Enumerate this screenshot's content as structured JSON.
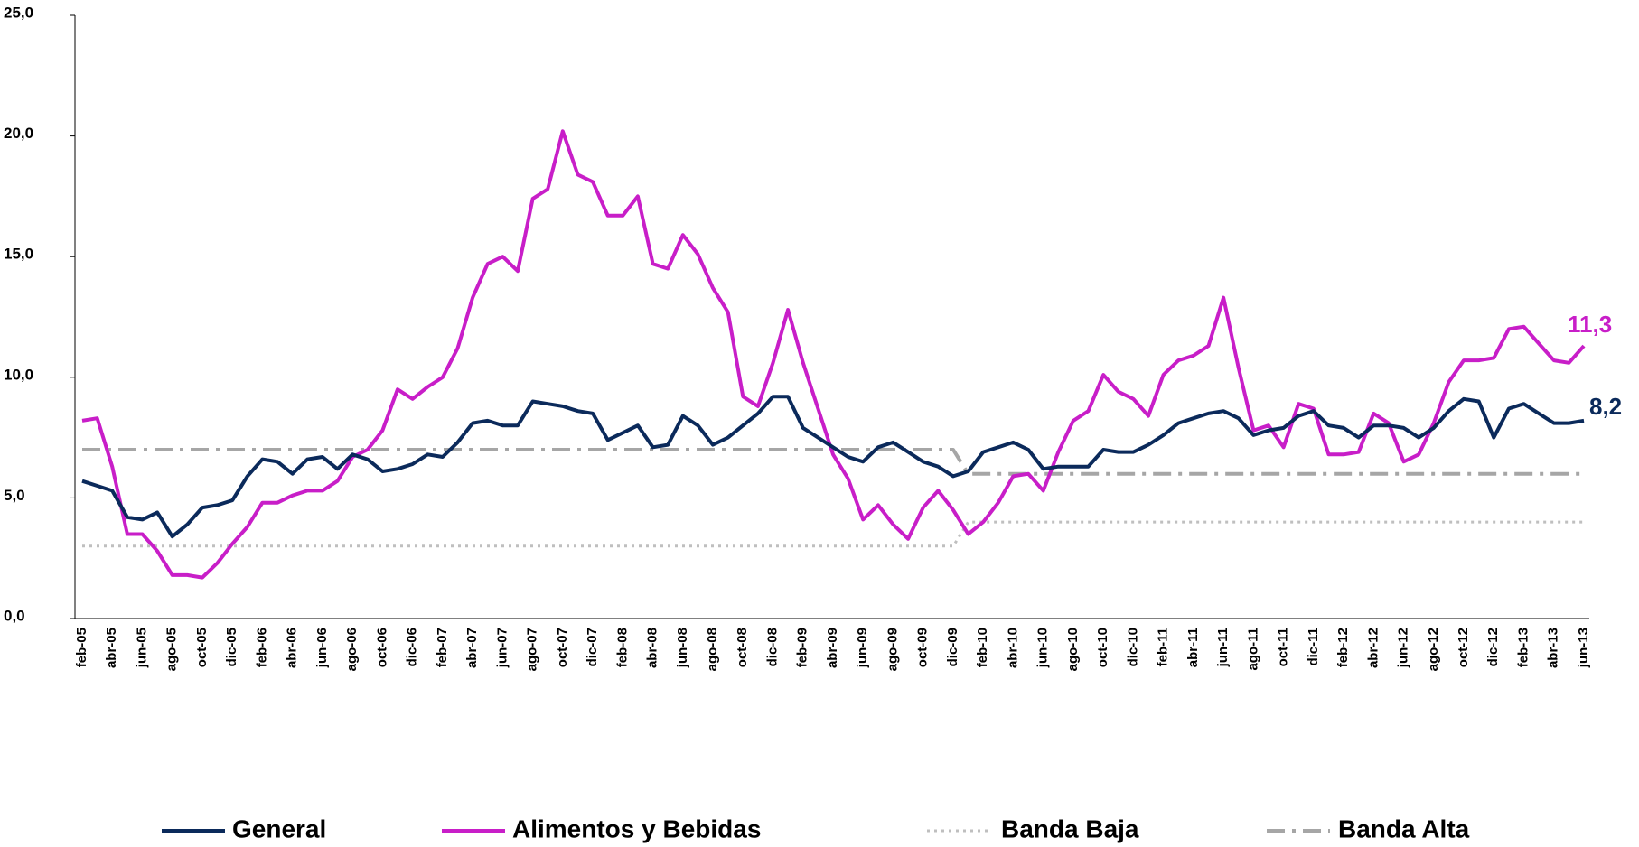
{
  "chart_data": {
    "type": "line",
    "categories": [
      "feb-05",
      null,
      "abr-05",
      null,
      "jun-05",
      null,
      "ago-05",
      null,
      "oct-05",
      null,
      "dic-05",
      null,
      "feb-06",
      null,
      "abr-06",
      null,
      "jun-06",
      null,
      "ago-06",
      null,
      "oct-06",
      null,
      "dic-06",
      null,
      "feb-07",
      null,
      "abr-07",
      null,
      "jun-07",
      null,
      "ago-07",
      null,
      "oct-07",
      null,
      "dic-07",
      null,
      "feb-08",
      null,
      "abr-08",
      null,
      "jun-08",
      null,
      "ago-08",
      null,
      "oct-08",
      null,
      "dic-08",
      null,
      "feb-09",
      null,
      "abr-09",
      null,
      "jun-09",
      null,
      "ago-09",
      null,
      "oct-09",
      null,
      "dic-09",
      null,
      "feb-10",
      null,
      "abr-10",
      null,
      "jun-10",
      null,
      "ago-10",
      null,
      "oct-10",
      null,
      "dic-10",
      null,
      "feb-11",
      null,
      "abr-11",
      null,
      "jun-11",
      null,
      "ago-11",
      null,
      "oct-11",
      null,
      "dic-11",
      null,
      "feb-12",
      null,
      "abr-12",
      null,
      "jun-12",
      null,
      "ago-12",
      null,
      "oct-12",
      null,
      "dic-12",
      null,
      "feb-13",
      null,
      "abr-13",
      null,
      "jun-13"
    ],
    "series": [
      {
        "name": "General",
        "color": "#0b2a5b",
        "dash": "solid",
        "values": [
          5.7,
          5.5,
          5.3,
          4.2,
          4.1,
          4.4,
          3.4,
          3.9,
          4.6,
          4.7,
          4.9,
          5.9,
          6.6,
          6.5,
          6.0,
          6.6,
          6.7,
          6.2,
          6.8,
          6.6,
          6.1,
          6.2,
          6.4,
          6.8,
          6.7,
          7.3,
          8.1,
          8.2,
          8.0,
          8.0,
          9.0,
          8.9,
          8.8,
          8.6,
          8.5,
          7.4,
          7.7,
          8.0,
          7.1,
          7.2,
          8.4,
          8.0,
          7.2,
          7.5,
          8.0,
          8.5,
          9.2,
          9.2,
          7.9,
          7.5,
          7.1,
          6.7,
          6.5,
          7.1,
          7.3,
          6.9,
          6.5,
          6.3,
          5.9,
          6.1,
          6.9,
          7.1,
          7.3,
          7.0,
          6.2,
          6.3,
          6.3,
          6.3,
          7.0,
          6.9,
          6.9,
          7.2,
          7.6,
          8.1,
          8.3,
          8.5,
          8.6,
          8.3,
          7.6,
          7.8,
          7.9,
          8.4,
          8.6,
          8.0,
          7.9,
          7.5,
          8.0,
          8.0,
          7.9,
          7.5,
          7.9,
          8.6,
          9.1,
          9.0,
          7.5,
          8.7,
          8.9,
          8.5,
          8.1,
          8.1,
          8.2
        ],
        "value_labels": [
          null,
          null,
          null,
          null,
          null,
          null,
          null,
          null,
          null,
          null,
          null,
          null,
          null,
          null,
          null,
          null,
          null,
          null,
          null,
          null,
          null,
          null,
          null,
          null,
          null,
          null,
          null,
          null,
          null,
          null,
          null,
          null,
          null,
          null,
          null,
          null,
          null,
          null,
          null,
          null,
          null,
          null,
          null,
          null,
          null,
          null,
          null,
          null,
          null,
          null,
          null,
          null,
          null,
          null,
          null,
          null,
          null,
          null,
          null,
          null,
          null,
          null,
          null,
          null,
          null,
          null,
          null,
          null,
          null,
          null,
          null,
          null,
          null,
          null,
          null,
          null,
          null,
          null,
          null,
          null,
          null,
          null,
          null,
          null,
          null,
          null,
          null,
          null,
          null,
          null,
          null,
          null,
          null,
          null,
          null,
          null,
          null,
          null,
          null,
          null,
          "8,2"
        ]
      },
      {
        "name": "Alimentos y Bebidas",
        "color": "#c81ec8",
        "dash": "solid",
        "values": [
          8.2,
          8.3,
          6.3,
          3.5,
          3.5,
          2.8,
          1.8,
          1.8,
          1.7,
          2.3,
          3.1,
          3.8,
          4.8,
          4.8,
          5.1,
          5.3,
          5.3,
          5.7,
          6.7,
          7.0,
          7.8,
          9.5,
          9.1,
          9.6,
          10.0,
          11.2,
          13.3,
          14.7,
          15.0,
          14.4,
          17.4,
          17.8,
          20.2,
          18.4,
          18.1,
          16.7,
          16.7,
          17.5,
          14.7,
          14.5,
          15.9,
          15.1,
          13.7,
          12.7,
          9.2,
          8.8,
          10.6,
          12.8,
          10.6,
          8.7,
          6.8,
          5.8,
          4.1,
          4.7,
          3.9,
          3.3,
          4.6,
          5.3,
          4.5,
          3.5,
          4.0,
          4.8,
          5.9,
          6.0,
          5.3,
          6.9,
          8.2,
          8.6,
          10.1,
          9.4,
          9.1,
          8.4,
          10.1,
          10.7,
          10.9,
          11.3,
          13.3,
          10.4,
          7.8,
          8.0,
          7.1,
          8.9,
          8.7,
          6.8,
          6.8,
          6.9,
          8.5,
          8.1,
          6.5,
          6.8,
          8.1,
          9.8,
          10.7,
          10.7,
          10.8,
          12.0,
          12.1,
          11.4,
          10.7,
          10.6,
          11.3
        ],
        "value_labels": [
          null,
          null,
          null,
          null,
          null,
          null,
          null,
          null,
          null,
          null,
          null,
          null,
          null,
          null,
          null,
          null,
          null,
          null,
          null,
          null,
          null,
          null,
          null,
          null,
          null,
          null,
          null,
          null,
          null,
          null,
          null,
          null,
          null,
          null,
          null,
          null,
          null,
          null,
          null,
          null,
          null,
          null,
          null,
          null,
          null,
          null,
          null,
          null,
          null,
          null,
          null,
          null,
          null,
          null,
          null,
          null,
          null,
          null,
          null,
          null,
          null,
          null,
          null,
          null,
          null,
          null,
          null,
          null,
          null,
          null,
          null,
          null,
          null,
          null,
          null,
          null,
          null,
          null,
          null,
          null,
          null,
          null,
          null,
          null,
          null,
          null,
          null,
          null,
          null,
          null,
          null,
          null,
          null,
          null,
          null,
          null,
          null,
          null,
          null,
          null,
          "11,3"
        ]
      },
      {
        "name": "Banda Baja",
        "color": "#bfbfbf",
        "dash": "dotted",
        "values": [
          3,
          3,
          3,
          3,
          3,
          3,
          3,
          3,
          3,
          3,
          3,
          3,
          3,
          3,
          3,
          3,
          3,
          3,
          3,
          3,
          3,
          3,
          3,
          3,
          3,
          3,
          3,
          3,
          3,
          3,
          3,
          3,
          3,
          3,
          3,
          3,
          3,
          3,
          3,
          3,
          3,
          3,
          3,
          3,
          3,
          3,
          3,
          3,
          3,
          3,
          3,
          3,
          3,
          3,
          3,
          3,
          3,
          3,
          3,
          4,
          4,
          4,
          4,
          4,
          4,
          4,
          4,
          4,
          4,
          4,
          4,
          4,
          4,
          4,
          4,
          4,
          4,
          4,
          4,
          4,
          4,
          4,
          4,
          4,
          4,
          4,
          4,
          4,
          4,
          4,
          4,
          4,
          4,
          4,
          4,
          4,
          4,
          4,
          4,
          4,
          4
        ]
      },
      {
        "name": "Banda Alta",
        "color": "#a6a6a6",
        "dash": "dashdot",
        "values": [
          7,
          7,
          7,
          7,
          7,
          7,
          7,
          7,
          7,
          7,
          7,
          7,
          7,
          7,
          7,
          7,
          7,
          7,
          7,
          7,
          7,
          7,
          7,
          7,
          7,
          7,
          7,
          7,
          7,
          7,
          7,
          7,
          7,
          7,
          7,
          7,
          7,
          7,
          7,
          7,
          7,
          7,
          7,
          7,
          7,
          7,
          7,
          7,
          7,
          7,
          7,
          7,
          7,
          7,
          7,
          7,
          7,
          7,
          7,
          6,
          6,
          6,
          6,
          6,
          6,
          6,
          6,
          6,
          6,
          6,
          6,
          6,
          6,
          6,
          6,
          6,
          6,
          6,
          6,
          6,
          6,
          6,
          6,
          6,
          6,
          6,
          6,
          6,
          6,
          6,
          6,
          6,
          6,
          6,
          6,
          6,
          6,
          6,
          6,
          6,
          6
        ]
      }
    ],
    "ylim": [
      0,
      25
    ],
    "yticks": [
      {
        "value": 0,
        "label": "0,0"
      },
      {
        "value": 5,
        "label": "5,0"
      },
      {
        "value": 10,
        "label": "10,0"
      },
      {
        "value": 15,
        "label": "15,0"
      },
      {
        "value": 20,
        "label": "20,0"
      },
      {
        "value": 25,
        "label": "25,0"
      }
    ],
    "grid": false,
    "legend": "bottom"
  }
}
